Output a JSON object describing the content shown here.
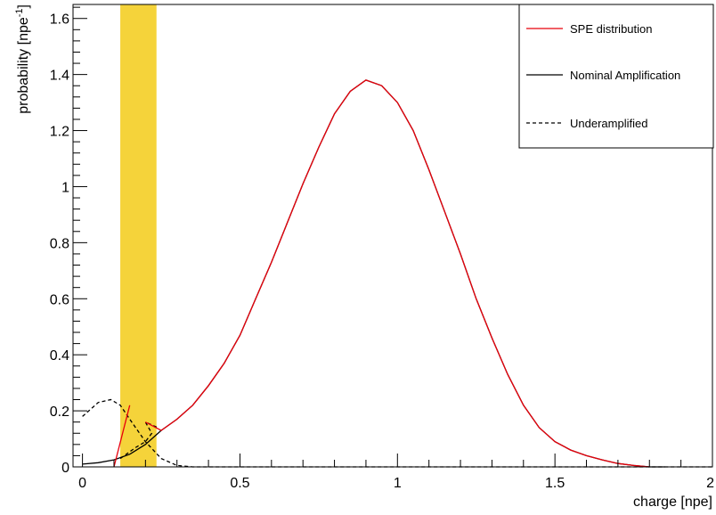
{
  "chart_data": {
    "type": "line",
    "xlabel": "charge [npe]",
    "ylabel": "probability [npe",
    "ylabel_sup": "-1",
    "ylabel_close": "]",
    "xlim": [
      -0.03,
      2.0
    ],
    "ylim": [
      0,
      1.65
    ],
    "x_ticks": [
      {
        "v": 0,
        "label": "0"
      },
      {
        "v": 0.5,
        "label": "0.5"
      },
      {
        "v": 1,
        "label": "1"
      },
      {
        "v": 1.5,
        "label": "1.5"
      },
      {
        "v": 2,
        "label": "2"
      }
    ],
    "y_ticks": [
      {
        "v": 0,
        "label": "0"
      },
      {
        "v": 0.2,
        "label": "0.2"
      },
      {
        "v": 0.4,
        "label": "0.4"
      },
      {
        "v": 0.6,
        "label": "0.6"
      },
      {
        "v": 0.8,
        "label": "0.8"
      },
      {
        "v": 1.0,
        "label": "1"
      },
      {
        "v": 1.2,
        "label": "1.2"
      },
      {
        "v": 1.4,
        "label": "1.4"
      },
      {
        "v": 1.6,
        "label": "1.6"
      }
    ],
    "highlight_band": {
      "x0": 0.12,
      "x1": 0.235,
      "color": "#f5d33a"
    },
    "legend": {
      "position": "top-right",
      "entries": [
        {
          "label": "SPE distribution",
          "color": "#e8000b",
          "dash": "solid"
        },
        {
          "label": "Nominal Amplification",
          "color": "#000000",
          "dash": "solid"
        },
        {
          "label": "Underamplified",
          "color": "#000000",
          "dash": "dashed"
        }
      ]
    },
    "series": [
      {
        "name": "SPE distribution",
        "color": "#e8000b",
        "dash": "solid",
        "segments": [
          [
            [
              0.1,
              0.0
            ],
            [
              0.15,
              0.22
            ]
          ],
          [
            [
              0.2,
              0.16
            ],
            [
              0.25,
              0.13
            ],
            [
              0.3,
              0.17
            ],
            [
              0.35,
              0.22
            ],
            [
              0.4,
              0.29
            ],
            [
              0.45,
              0.37
            ],
            [
              0.5,
              0.47
            ],
            [
              0.55,
              0.6
            ],
            [
              0.6,
              0.73
            ],
            [
              0.65,
              0.87
            ],
            [
              0.7,
              1.01
            ],
            [
              0.75,
              1.14
            ],
            [
              0.8,
              1.26
            ],
            [
              0.85,
              1.34
            ],
            [
              0.9,
              1.38
            ],
            [
              0.95,
              1.36
            ],
            [
              1.0,
              1.3
            ],
            [
              1.05,
              1.2
            ],
            [
              1.1,
              1.06
            ],
            [
              1.15,
              0.91
            ],
            [
              1.2,
              0.76
            ],
            [
              1.25,
              0.6
            ],
            [
              1.3,
              0.46
            ],
            [
              1.35,
              0.33
            ],
            [
              1.4,
              0.22
            ],
            [
              1.45,
              0.14
            ],
            [
              1.5,
              0.09
            ],
            [
              1.55,
              0.06
            ],
            [
              1.6,
              0.04
            ],
            [
              1.65,
              0.025
            ],
            [
              1.7,
              0.012
            ],
            [
              1.75,
              0.005
            ],
            [
              1.8,
              0.0
            ]
          ]
        ]
      },
      {
        "name": "Nominal Amplification",
        "color": "#000000",
        "dash": "solid",
        "segments": [
          [
            [
              0.0,
              0.01
            ],
            [
              0.05,
              0.015
            ],
            [
              0.1,
              0.025
            ],
            [
              0.15,
              0.045
            ],
            [
              0.2,
              0.08
            ],
            [
              0.25,
              0.13
            ],
            [
              0.3,
              0.17
            ],
            [
              0.35,
              0.22
            ],
            [
              0.4,
              0.29
            ],
            [
              0.45,
              0.37
            ],
            [
              0.5,
              0.47
            ],
            [
              0.55,
              0.6
            ],
            [
              0.6,
              0.73
            ],
            [
              0.65,
              0.87
            ],
            [
              0.7,
              1.01
            ],
            [
              0.75,
              1.14
            ],
            [
              0.8,
              1.26
            ],
            [
              0.85,
              1.34
            ],
            [
              0.9,
              1.38
            ],
            [
              0.95,
              1.36
            ],
            [
              1.0,
              1.3
            ],
            [
              1.05,
              1.2
            ],
            [
              1.1,
              1.06
            ],
            [
              1.15,
              0.91
            ],
            [
              1.2,
              0.76
            ],
            [
              1.25,
              0.6
            ],
            [
              1.3,
              0.46
            ],
            [
              1.35,
              0.33
            ],
            [
              1.4,
              0.22
            ],
            [
              1.45,
              0.14
            ],
            [
              1.5,
              0.09
            ],
            [
              1.55,
              0.06
            ],
            [
              1.6,
              0.04
            ],
            [
              1.65,
              0.025
            ],
            [
              1.7,
              0.012
            ],
            [
              1.75,
              0.005
            ],
            [
              1.8,
              0.0
            ],
            [
              1.85,
              0.0
            ]
          ]
        ]
      },
      {
        "name": "Underamplified",
        "color": "#000000",
        "dash": "dashed",
        "segments": [
          [
            [
              0.0,
              0.18
            ],
            [
              0.05,
              0.23
            ],
            [
              0.09,
              0.24
            ],
            [
              0.12,
              0.22
            ],
            [
              0.15,
              0.17
            ],
            [
              0.2,
              0.09
            ],
            [
              0.25,
              0.03
            ],
            [
              0.3,
              0.005
            ],
            [
              0.35,
              0.0
            ],
            [
              2.0,
              0.0
            ]
          ]
        ]
      },
      {
        "name": "",
        "color": "#000000",
        "dash": "dashed",
        "segments": [
          [
            [
              0.12,
              0.03
            ],
            [
              0.17,
              0.07
            ],
            [
              0.2,
              0.09
            ],
            [
              0.22,
              0.12
            ],
            [
              0.2,
              0.16
            ],
            [
              0.24,
              0.14
            ]
          ]
        ]
      }
    ]
  }
}
